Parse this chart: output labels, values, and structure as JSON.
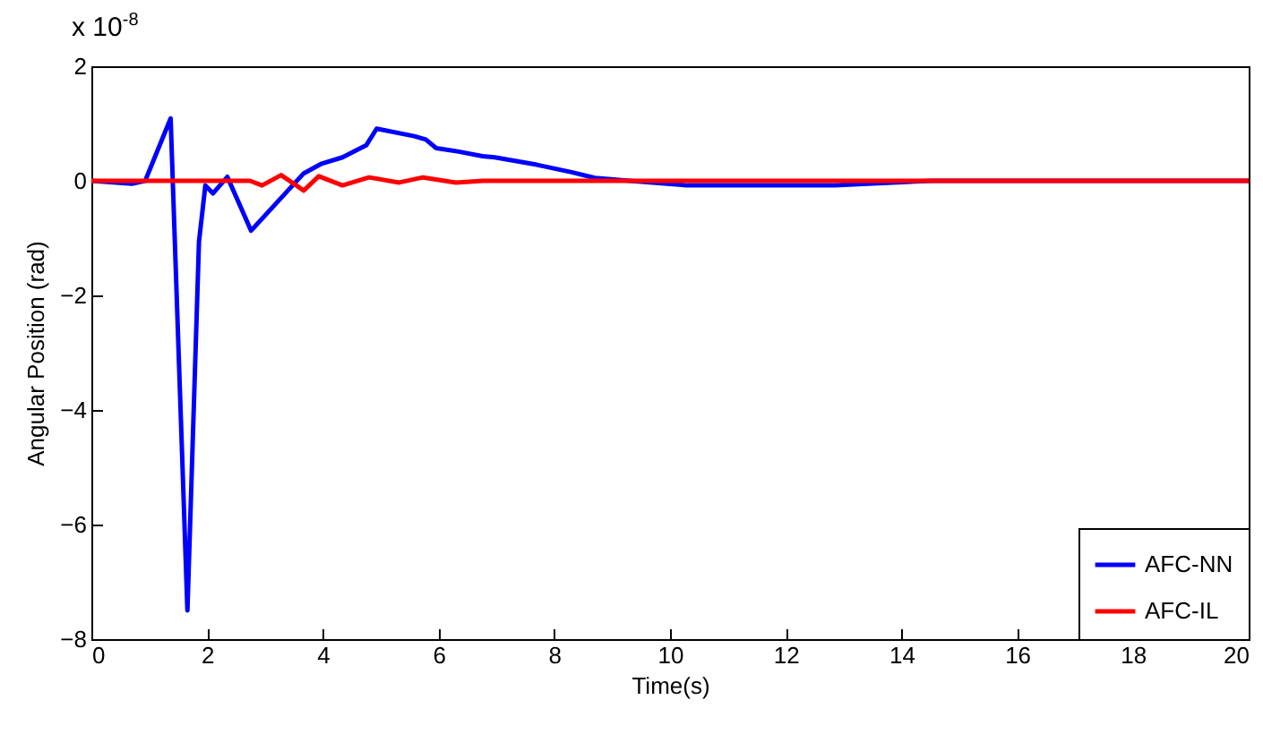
{
  "chart_data": {
    "type": "line",
    "xlabel": "Time(s)",
    "ylabel": "Angular Position (rad)",
    "annotations": [
      "x 10$^{-8}$"
    ],
    "xlim": [
      0,
      20
    ],
    "ylim": [
      -8,
      2
    ],
    "xticks": [
      0,
      2,
      4,
      6,
      8,
      10,
      12,
      14,
      16,
      18,
      20
    ],
    "yticks": [
      -8,
      -6,
      -4,
      -2,
      0,
      2
    ],
    "grid": false,
    "legend": "bottom right",
    "line_style": "solid",
    "marker": "none",
    "series": [
      {
        "name": "AFC-NN",
        "color": "#0000ff",
        "x": [
          0,
          0.7,
          0.93,
          1.37,
          1.66,
          1.86,
          1.97,
          2.1,
          2.35,
          2.76,
          3.67,
          3.98,
          4.34,
          4.75,
          4.93,
          5.58,
          5.78,
          5.96,
          6.35,
          6.76,
          6.97,
          7.7,
          8.3,
          8.7,
          9.3,
          10.3,
          12.85,
          14.5,
          20
        ],
        "values": [
          0,
          -0.05,
          0,
          1.09,
          -7.5,
          -1.06,
          -0.08,
          -0.22,
          0.07,
          -0.87,
          0.13,
          0.3,
          0.41,
          0.62,
          0.91,
          0.78,
          0.72,
          0.57,
          0.51,
          0.43,
          0.41,
          0.28,
          0.15,
          0.05,
          0,
          -0.08,
          -0.08,
          0,
          0
        ]
      },
      {
        "name": "AFC-IL",
        "color": "#ff0000",
        "x": [
          0,
          2.74,
          2.95,
          3.28,
          3.67,
          3.93,
          4.34,
          4.8,
          5.32,
          5.73,
          6.3,
          6.77,
          20
        ],
        "values": [
          0,
          0,
          -0.08,
          0.1,
          -0.17,
          0.08,
          -0.08,
          0.06,
          -0.03,
          0.06,
          -0.03,
          0,
          0
        ]
      }
    ]
  }
}
